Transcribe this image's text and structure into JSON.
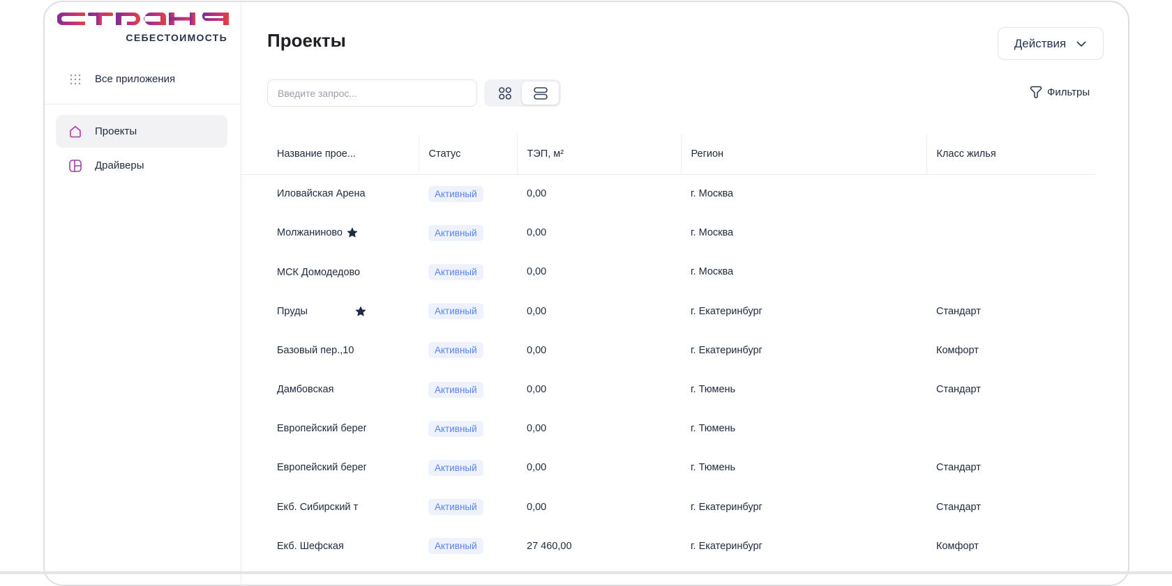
{
  "brand": {
    "logo_text": "СТРАНА",
    "subtitle": "СЕБЕСТОИМОСТЬ",
    "colors": [
      "#7a2f93",
      "#c2307e",
      "#e3423a"
    ]
  },
  "sidebar": {
    "all_apps": "Все приложения",
    "items": [
      {
        "label": "Проекты",
        "icon": "home-icon",
        "active": true
      },
      {
        "label": "Драйверы",
        "icon": "layout-icon",
        "active": false
      }
    ]
  },
  "header": {
    "title": "Проекты",
    "actions_label": "Действия"
  },
  "toolbar": {
    "search_placeholder": "Введите запрос...",
    "search_value": "",
    "view_mode": "list",
    "filters_label": "Фильтры"
  },
  "table": {
    "columns": [
      "Название прое...",
      "Статус",
      "ТЭП, м²",
      "Регион",
      "Класс жилья"
    ],
    "rows": [
      {
        "name": "Иловайская Арена",
        "starred": false,
        "status": "Активный",
        "tep": "0,00",
        "region": "г. Москва",
        "class": ""
      },
      {
        "name": "Молжаниново",
        "starred": true,
        "status": "Активный",
        "tep": "0,00",
        "region": "г. Москва",
        "class": ""
      },
      {
        "name": "МСК Домодедово",
        "starred": false,
        "status": "Активный",
        "tep": "0,00",
        "region": "г. Москва",
        "class": ""
      },
      {
        "name": "Пруды",
        "starred": true,
        "status": "Активный",
        "tep": "0,00",
        "region": "г. Екатеринбург",
        "class": "Стандарт"
      },
      {
        "name": "Базовый пер.,10",
        "starred": false,
        "status": "Активный",
        "tep": "0,00",
        "region": "г. Екатеринбург",
        "class": "Комфорт"
      },
      {
        "name": "Дамбовская",
        "starred": false,
        "status": "Активный",
        "tep": "0,00",
        "region": "г. Тюмень",
        "class": "Стандарт"
      },
      {
        "name": "Европейский берег",
        "starred": false,
        "status": "Активный",
        "tep": "0,00",
        "region": "г. Тюмень",
        "class": ""
      },
      {
        "name": "Европейский берег",
        "starred": false,
        "status": "Активный",
        "tep": "0,00",
        "region": "г. Тюмень",
        "class": "Стандарт"
      },
      {
        "name": "Екб. Сибирский т",
        "starred": false,
        "status": "Активный",
        "tep": "0,00",
        "region": "г. Екатеринбург",
        "class": "Стандарт"
      },
      {
        "name": "Екб. Шефская",
        "starred": false,
        "status": "Активный",
        "tep": "27 460,00",
        "region": "г. Екатеринбург",
        "class": "Комфорт"
      }
    ]
  }
}
